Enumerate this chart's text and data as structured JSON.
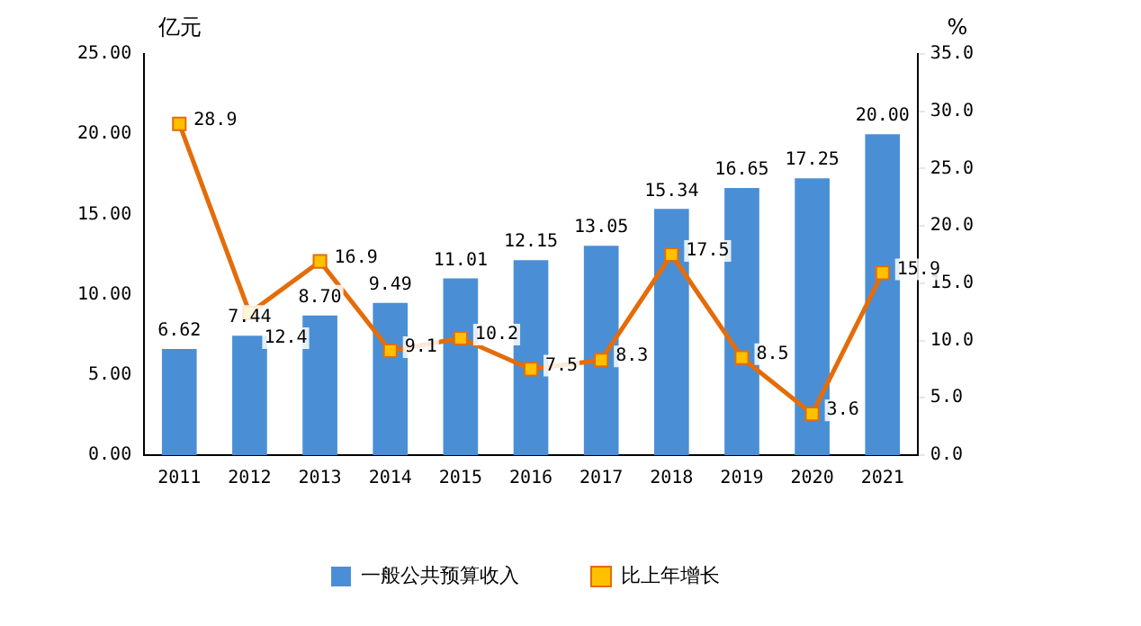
{
  "chart_data": {
    "type": "bar",
    "ylabel": "亿元",
    "y2label": "%",
    "categories": [
      "2011",
      "2012",
      "2013",
      "2014",
      "2015",
      "2016",
      "2017",
      "2018",
      "2019",
      "2020",
      "2021"
    ],
    "series": [
      {
        "name": "一般公共预算收入",
        "type": "bar",
        "color": "#4a8fd6",
        "values": [
          6.62,
          7.44,
          8.7,
          9.49,
          11.01,
          12.15,
          13.05,
          15.34,
          16.65,
          17.25,
          20.0
        ],
        "value_labels": [
          "6.62",
          "7.44",
          "8.70",
          "9.49",
          "11.01",
          "12.15",
          "13.05",
          "15.34",
          "16.65",
          "17.25",
          "20.00"
        ]
      },
      {
        "name": "比上年增长",
        "type": "line",
        "axis": "y2",
        "color": "#e46c0a",
        "marker": "square",
        "values": [
          28.9,
          12.4,
          16.9,
          9.1,
          10.2,
          7.5,
          8.3,
          17.5,
          8.5,
          3.6,
          15.9
        ],
        "value_labels": [
          "28.9",
          "12.4",
          "16.9",
          "9.1",
          "10.2",
          "7.5",
          "8.3",
          "17.5",
          "8.5",
          "3.6",
          "15.9"
        ]
      }
    ],
    "ylim": [
      0,
      25
    ],
    "yticks": [
      {
        "value": 0,
        "label": "0.00"
      },
      {
        "value": 5,
        "label": "5.00"
      },
      {
        "value": 10,
        "label": "10.00"
      },
      {
        "value": 15,
        "label": "15.00"
      },
      {
        "value": 20,
        "label": "20.00"
      },
      {
        "value": 25,
        "label": "25.00"
      }
    ],
    "y2lim": [
      0,
      35
    ],
    "y2ticks": [
      {
        "value": 0,
        "label": "0.0"
      },
      {
        "value": 5,
        "label": "5.0"
      },
      {
        "value": 10,
        "label": "10.0"
      },
      {
        "value": 15,
        "label": "15.0"
      },
      {
        "value": 20,
        "label": "20.0"
      },
      {
        "value": 25,
        "label": "25.0"
      },
      {
        "value": 30,
        "label": "30.0"
      },
      {
        "value": 35,
        "label": "35.0"
      }
    ],
    "grid": false,
    "legend": "bottom"
  }
}
